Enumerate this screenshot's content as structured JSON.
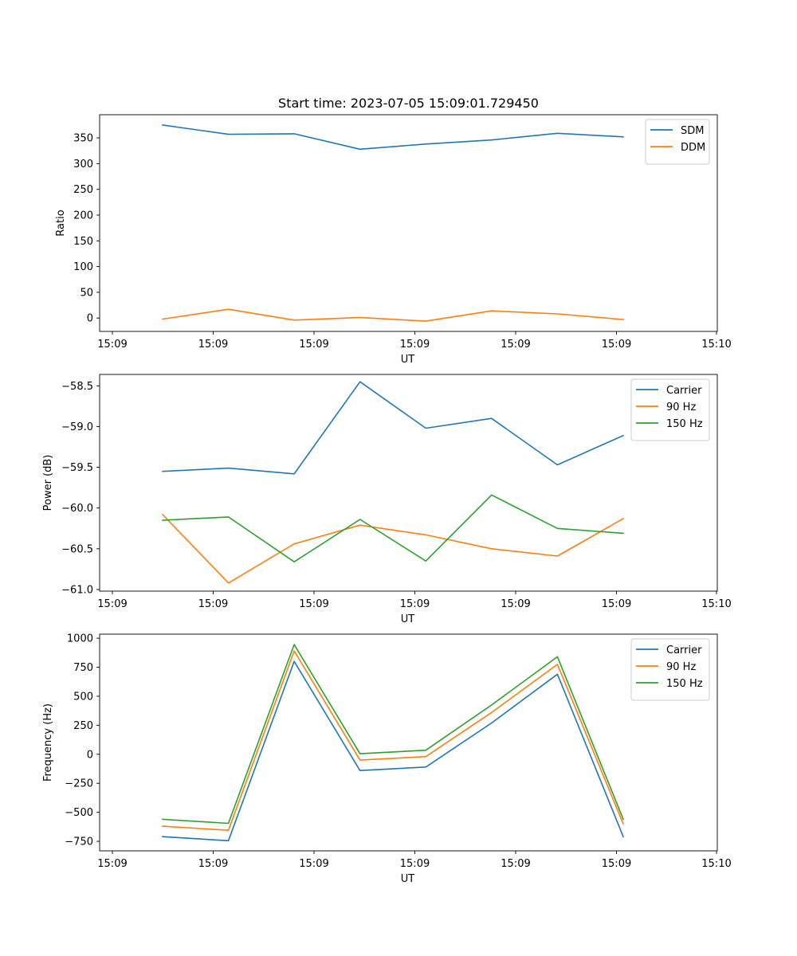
{
  "chart_data": [
    {
      "type": "line",
      "title": "Start time: 2023-07-05 15:09:01.729450",
      "xlabel": "UT",
      "ylabel": "Ratio",
      "x_ticks": [
        "15:09",
        "15:09",
        "15:09",
        "15:09",
        "15:09",
        "15:09",
        "15:10"
      ],
      "y_ticks": [
        "0",
        "50",
        "100",
        "150",
        "200",
        "250",
        "300",
        "350"
      ],
      "y_tick_values": [
        0,
        50,
        100,
        150,
        200,
        250,
        300,
        350
      ],
      "ylim": [
        -26,
        395
      ],
      "x": [
        1,
        2,
        3,
        4,
        5,
        6,
        7,
        8
      ],
      "series": [
        {
          "name": "SDM",
          "color": "#1f77b4",
          "values": [
            375,
            357,
            358,
            328,
            338,
            346,
            359,
            352
          ]
        },
        {
          "name": "DDM",
          "color": "#ff7f0e",
          "values": [
            -2,
            17,
            -4,
            1,
            -6,
            14,
            8,
            -3
          ]
        }
      ],
      "legend": "top-right",
      "grid": false
    },
    {
      "type": "line",
      "title": "",
      "xlabel": "UT",
      "ylabel": "Power (dB)",
      "x_ticks": [
        "15:09",
        "15:09",
        "15:09",
        "15:09",
        "15:09",
        "15:09",
        "15:10"
      ],
      "y_ticks": [
        "−61.0",
        "−60.5",
        "−60.0",
        "−59.5",
        "−59.0",
        "−58.5"
      ],
      "y_tick_values": [
        -61.0,
        -60.5,
        -60.0,
        -59.5,
        -59.0,
        -58.5
      ],
      "ylim": [
        -61.02,
        -58.36
      ],
      "x": [
        1,
        2,
        3,
        4,
        5,
        6,
        7,
        8
      ],
      "series": [
        {
          "name": "Carrier",
          "color": "#1f77b4",
          "values": [
            -59.55,
            -59.51,
            -59.58,
            -58.45,
            -59.02,
            -58.9,
            -59.47,
            -59.11
          ]
        },
        {
          "name": "90 Hz",
          "color": "#ff7f0e",
          "values": [
            -60.08,
            -60.92,
            -60.44,
            -60.21,
            -60.33,
            -60.5,
            -60.59,
            -60.13
          ]
        },
        {
          "name": "150 Hz",
          "color": "#2ca02c",
          "values": [
            -60.15,
            -60.11,
            -60.66,
            -60.14,
            -60.65,
            -59.84,
            -60.25,
            -60.31
          ]
        }
      ],
      "legend": "top-right",
      "grid": false
    },
    {
      "type": "line",
      "title": "",
      "xlabel": "UT",
      "ylabel": "Frequency (Hz)",
      "x_ticks": [
        "15:09",
        "15:09",
        "15:09",
        "15:09",
        "15:09",
        "15:09",
        "15:10"
      ],
      "y_ticks": [
        "−750",
        "−500",
        "−250",
        "0",
        "250",
        "500",
        "750",
        "1000"
      ],
      "y_tick_values": [
        -750,
        -500,
        -250,
        0,
        250,
        500,
        750,
        1000
      ],
      "ylim": [
        -832,
        1035
      ],
      "x": [
        1,
        2,
        3,
        4,
        5,
        6,
        7,
        8
      ],
      "series": [
        {
          "name": "Carrier",
          "color": "#1f77b4",
          "values": [
            -710,
            -745,
            800,
            -140,
            -110,
            270,
            690,
            -710
          ]
        },
        {
          "name": "90 Hz",
          "color": "#ff7f0e",
          "values": [
            -620,
            -655,
            890,
            -50,
            -20,
            360,
            775,
            -600
          ]
        },
        {
          "name": "150 Hz",
          "color": "#2ca02c",
          "values": [
            -560,
            -595,
            945,
            5,
            35,
            425,
            840,
            -560
          ]
        }
      ],
      "legend": "top-right",
      "grid": false
    }
  ]
}
